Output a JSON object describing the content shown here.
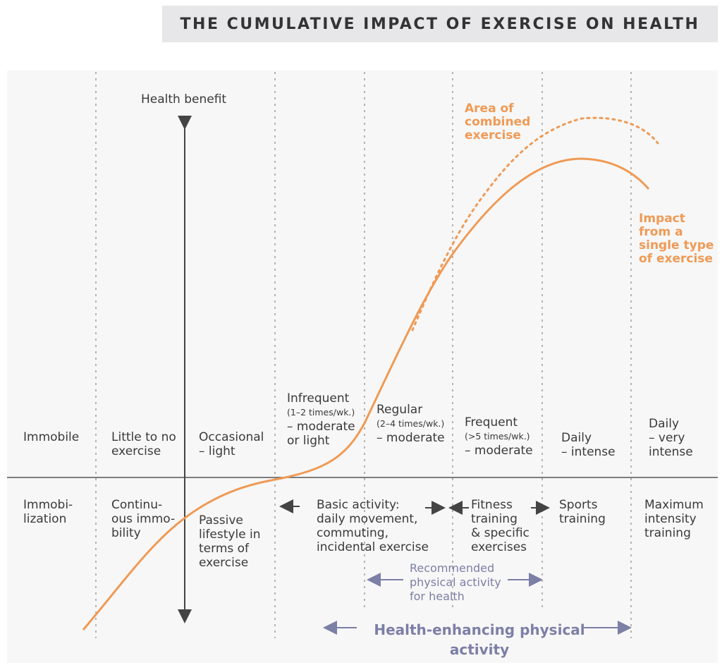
{
  "title": "THE CUMULATIVE IMPACT OF EXERCISE ON HEALTH",
  "axis_label": "Health benefit",
  "legend": {
    "combined": [
      "Area of",
      "combined",
      "exercise"
    ],
    "single": [
      "Impact",
      "from a",
      "single type",
      "of exercise"
    ]
  },
  "levels": [
    {
      "lines": [
        "Immobile"
      ]
    },
    {
      "lines": [
        "Little to no",
        "exercise"
      ]
    },
    {
      "lines": [
        "Occasional",
        "– light"
      ]
    },
    {
      "lines": [
        "Infrequent",
        "(1–2 times/wk.)",
        "– moderate",
        "or light"
      ]
    },
    {
      "lines": [
        "Regular",
        "(2–4 times/wk.)",
        "– moderate"
      ]
    },
    {
      "lines": [
        "Frequent",
        "(>5 times/wk.)",
        "– moderate"
      ]
    },
    {
      "lines": [
        "Daily",
        "– intense"
      ]
    },
    {
      "lines": [
        "Daily",
        "– very",
        "intense"
      ]
    }
  ],
  "types": [
    {
      "lines": [
        "Immobi-",
        "lization"
      ]
    },
    {
      "lines": [
        "Continu-",
        "ous immo-",
        "bility"
      ]
    },
    {
      "lines": [
        "Passive",
        "lifestyle in",
        "terms of",
        "exercise"
      ]
    },
    {
      "lines": [
        "Basic activity:",
        "daily movement,",
        "commuting,",
        "incidental exercise"
      ]
    },
    {
      "lines": [
        "Fitness",
        "training",
        "& specific",
        "exercises"
      ]
    },
    {
      "lines": [
        "Sports",
        "training"
      ]
    },
    {
      "lines": [
        "Maximum",
        "intensity",
        "training"
      ]
    }
  ],
  "recommended": [
    "Recommended",
    "physical activity",
    "for health"
  ],
  "health_enhancing": [
    "Health-enhancing physical",
    "activity"
  ],
  "colors": {
    "curve": "#ef9a55",
    "accent": "#7c7fa6",
    "text": "#3a3a3a",
    "title_bg": "#e7e7e9"
  }
}
